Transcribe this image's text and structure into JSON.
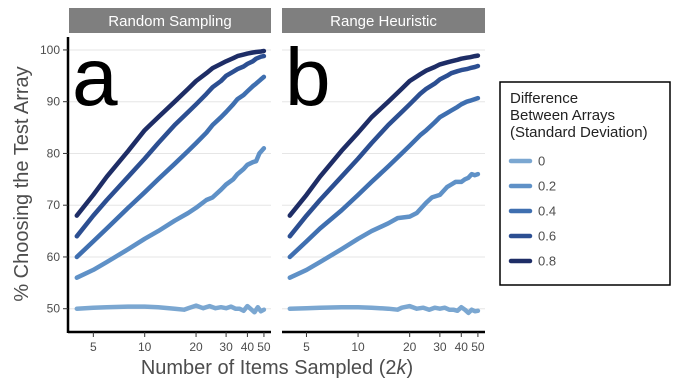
{
  "chart_data": {
    "type": "line",
    "xlabel": "Number of Items Sampled (2k)",
    "ylabel": "% Choosing the Test Array",
    "x_scale": "log",
    "xlim": [
      3.6,
      55
    ],
    "ylim": [
      45.5,
      102.5
    ],
    "x_ticks": [
      5,
      10,
      20,
      30,
      40,
      50
    ],
    "y_ticks": [
      50,
      60,
      70,
      80,
      90,
      100
    ],
    "legend": {
      "title_lines": [
        "Difference",
        "Between Arrays",
        "(Standard Deviation)"
      ],
      "placement": "right",
      "entries": [
        "0",
        "0.2",
        "0.4",
        "0.6",
        "0.8"
      ]
    },
    "colors": [
      "#7ba7d1",
      "#5f91c7",
      "#3f6fb0",
      "#2c4f92",
      "#1e2d66"
    ],
    "panels": [
      {
        "strip": "Random Sampling",
        "letter": "a",
        "series": [
          {
            "name": "0",
            "points": [
              [
                4,
                50
              ],
              [
                5,
                50.2
              ],
              [
                6,
                50.3
              ],
              [
                8,
                50.4
              ],
              [
                10,
                50.4
              ],
              [
                12,
                50.3
              ],
              [
                15,
                50
              ],
              [
                17,
                49.8
              ],
              [
                18,
                50.1
              ],
              [
                20,
                50.6
              ],
              [
                22,
                50.1
              ],
              [
                24,
                50.5
              ],
              [
                26,
                50.1
              ],
              [
                28,
                50.3
              ],
              [
                30,
                50.1
              ],
              [
                32,
                50.4
              ],
              [
                34,
                50
              ],
              [
                36,
                50
              ],
              [
                38,
                49.6
              ],
              [
                40,
                50.5
              ],
              [
                42,
                49.9
              ],
              [
                44,
                49.3
              ],
              [
                46,
                50.3
              ],
              [
                48,
                49.5
              ],
              [
                50,
                49.8
              ]
            ]
          },
          {
            "name": "0.2",
            "points": [
              [
                4,
                56
              ],
              [
                5,
                57.5
              ],
              [
                6,
                59
              ],
              [
                8,
                61.5
              ],
              [
                10,
                63.5
              ],
              [
                12,
                65
              ],
              [
                15,
                67
              ],
              [
                18,
                68.5
              ],
              [
                20,
                69.5
              ],
              [
                23,
                71
              ],
              [
                25,
                71.5
              ],
              [
                28,
                73
              ],
              [
                30,
                74
              ],
              [
                33,
                75
              ],
              [
                35,
                76
              ],
              [
                38,
                77
              ],
              [
                40,
                77.8
              ],
              [
                43,
                78.3
              ],
              [
                45,
                78.5
              ],
              [
                47,
                80
              ],
              [
                50,
                81
              ]
            ]
          },
          {
            "name": "0.4",
            "points": [
              [
                4,
                60
              ],
              [
                5,
                63
              ],
              [
                6,
                65.5
              ],
              [
                8,
                69.5
              ],
              [
                10,
                72.5
              ],
              [
                12,
                75
              ],
              [
                15,
                78
              ],
              [
                18,
                80.5
              ],
              [
                20,
                82
              ],
              [
                23,
                84
              ],
              [
                25,
                85.5
              ],
              [
                28,
                87
              ],
              [
                30,
                88
              ],
              [
                33,
                89.5
              ],
              [
                35,
                90.5
              ],
              [
                38,
                91.3
              ],
              [
                40,
                92
              ],
              [
                43,
                93
              ],
              [
                45,
                93.5
              ],
              [
                48,
                94.3
              ],
              [
                50,
                94.8
              ]
            ]
          },
          {
            "name": "0.6",
            "points": [
              [
                4,
                64
              ],
              [
                5,
                68
              ],
              [
                6,
                71
              ],
              [
                8,
                75.5
              ],
              [
                10,
                79
              ],
              [
                12,
                82
              ],
              [
                15,
                85.5
              ],
              [
                18,
                88
              ],
              [
                20,
                89.5
              ],
              [
                23,
                91.5
              ],
              [
                25,
                92.8
              ],
              [
                28,
                94
              ],
              [
                30,
                95
              ],
              [
                33,
                95.8
              ],
              [
                35,
                96.3
              ],
              [
                38,
                96.8
              ],
              [
                40,
                97.3
              ],
              [
                43,
                97.8
              ],
              [
                45,
                98.3
              ],
              [
                48,
                98.7
              ],
              [
                50,
                98.8
              ]
            ]
          },
          {
            "name": "0.8",
            "points": [
              [
                4,
                68
              ],
              [
                5,
                72
              ],
              [
                6,
                75.5
              ],
              [
                8,
                80.5
              ],
              [
                10,
                84.5
              ],
              [
                12,
                87
              ],
              [
                15,
                90
              ],
              [
                18,
                92.5
              ],
              [
                20,
                94
              ],
              [
                23,
                95.5
              ],
              [
                25,
                96.5
              ],
              [
                28,
                97.3
              ],
              [
                30,
                97.8
              ],
              [
                33,
                98.4
              ],
              [
                35,
                98.8
              ],
              [
                38,
                99.1
              ],
              [
                40,
                99.3
              ],
              [
                43,
                99.5
              ],
              [
                45,
                99.6
              ],
              [
                48,
                99.7
              ],
              [
                50,
                99.8
              ]
            ]
          }
        ]
      },
      {
        "strip": "Range Heuristic",
        "letter": "b",
        "series": [
          {
            "name": "0",
            "points": [
              [
                4,
                50
              ],
              [
                5,
                50.1
              ],
              [
                6,
                50.2
              ],
              [
                8,
                50.3
              ],
              [
                10,
                50.3
              ],
              [
                12,
                50.2
              ],
              [
                15,
                50
              ],
              [
                17,
                49.8
              ],
              [
                18,
                50.2
              ],
              [
                20,
                50.5
              ],
              [
                22,
                50
              ],
              [
                24,
                50.2
              ],
              [
                26,
                49.8
              ],
              [
                28,
                50.2
              ],
              [
                30,
                50
              ],
              [
                32,
                50.2
              ],
              [
                34,
                49.8
              ],
              [
                36,
                49.8
              ],
              [
                38,
                49.6
              ],
              [
                40,
                50.3
              ],
              [
                42,
                49.8
              ],
              [
                44,
                49.2
              ],
              [
                46,
                49.8
              ],
              [
                48,
                49.5
              ],
              [
                50,
                49.6
              ]
            ]
          },
          {
            "name": "0.2",
            "points": [
              [
                4,
                56
              ],
              [
                5,
                57.5
              ],
              [
                6,
                59
              ],
              [
                8,
                61.5
              ],
              [
                10,
                63.5
              ],
              [
                12,
                65
              ],
              [
                15,
                66.5
              ],
              [
                17,
                67.5
              ],
              [
                20,
                67.8
              ],
              [
                22,
                68.5
              ],
              [
                25,
                70.5
              ],
              [
                27,
                71.5
              ],
              [
                30,
                72
              ],
              [
                33,
                73.5
              ],
              [
                35,
                74
              ],
              [
                37,
                74.5
              ],
              [
                40,
                74.5
              ],
              [
                42,
                75
              ],
              [
                44,
                75.3
              ],
              [
                46,
                76
              ],
              [
                48,
                75.8
              ],
              [
                50,
                76
              ]
            ]
          },
          {
            "name": "0.4",
            "points": [
              [
                4,
                60
              ],
              [
                5,
                63
              ],
              [
                6,
                65.5
              ],
              [
                8,
                69
              ],
              [
                10,
                72
              ],
              [
                12,
                74.5
              ],
              [
                15,
                77.5
              ],
              [
                18,
                80
              ],
              [
                20,
                81.5
              ],
              [
                23,
                83.5
              ],
              [
                25,
                84.5
              ],
              [
                28,
                86
              ],
              [
                30,
                87
              ],
              [
                33,
                87.8
              ],
              [
                35,
                88.3
              ],
              [
                38,
                89
              ],
              [
                40,
                89.5
              ],
              [
                43,
                90
              ],
              [
                45,
                90.2
              ],
              [
                48,
                90.5
              ],
              [
                50,
                90.7
              ]
            ]
          },
          {
            "name": "0.6",
            "points": [
              [
                4,
                64
              ],
              [
                5,
                68
              ],
              [
                6,
                71
              ],
              [
                8,
                75.5
              ],
              [
                10,
                79
              ],
              [
                12,
                82
              ],
              [
                15,
                85.5
              ],
              [
                18,
                88
              ],
              [
                20,
                89.5
              ],
              [
                23,
                91.5
              ],
              [
                25,
                92.5
              ],
              [
                28,
                93.5
              ],
              [
                30,
                94.3
              ],
              [
                33,
                95
              ],
              [
                35,
                95.5
              ],
              [
                38,
                95.9
              ],
              [
                40,
                96.1
              ],
              [
                43,
                96.3
              ],
              [
                45,
                96.5
              ],
              [
                48,
                96.7
              ],
              [
                50,
                96.9
              ]
            ]
          },
          {
            "name": "0.8",
            "points": [
              [
                4,
                68
              ],
              [
                5,
                72
              ],
              [
                6,
                75.5
              ],
              [
                8,
                80.5
              ],
              [
                10,
                84
              ],
              [
                12,
                87
              ],
              [
                15,
                90
              ],
              [
                18,
                92.5
              ],
              [
                20,
                94
              ],
              [
                23,
                95.3
              ],
              [
                25,
                96
              ],
              [
                28,
                96.7
              ],
              [
                30,
                97.2
              ],
              [
                33,
                97.6
              ],
              [
                35,
                97.8
              ],
              [
                38,
                98.1
              ],
              [
                40,
                98.3
              ],
              [
                43,
                98.5
              ],
              [
                45,
                98.6
              ],
              [
                48,
                98.8
              ],
              [
                50,
                98.9
              ]
            ]
          }
        ]
      }
    ]
  }
}
